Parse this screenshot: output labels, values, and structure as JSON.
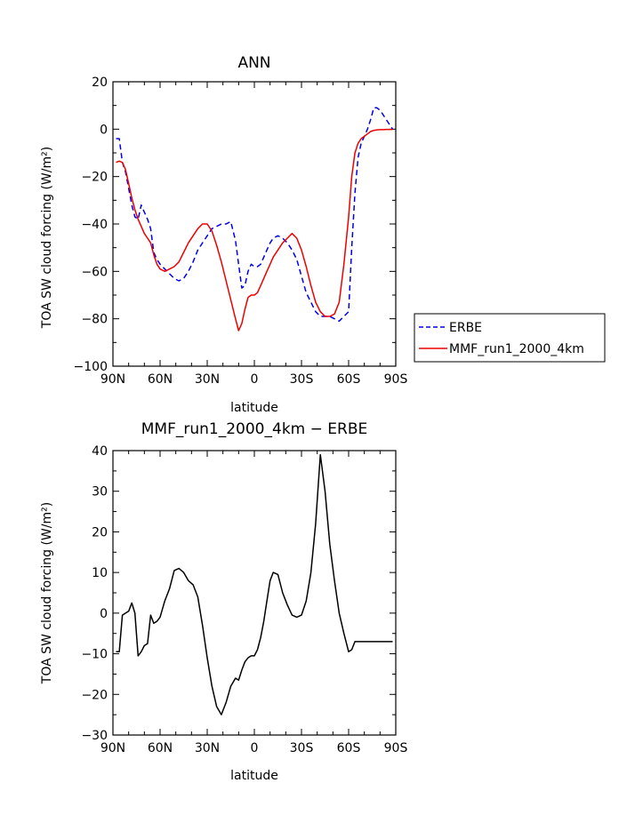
{
  "chart_data": [
    {
      "type": "line",
      "title": "ANN",
      "xlabel": "latitude",
      "ylabel": "TOA SW cloud forcing (W/m²)",
      "xlim": [
        90,
        -90
      ],
      "ylim": [
        -100,
        20
      ],
      "x_ticks": [
        {
          "value": 90,
          "label": "90N"
        },
        {
          "value": 60,
          "label": "60N"
        },
        {
          "value": 30,
          "label": "30N"
        },
        {
          "value": 0,
          "label": "0"
        },
        {
          "value": -30,
          "label": "30S"
        },
        {
          "value": -60,
          "label": "60S"
        },
        {
          "value": -90,
          "label": "90S"
        }
      ],
      "y_ticks": [
        {
          "value": 20,
          "label": "20"
        },
        {
          "value": 0,
          "label": "0"
        },
        {
          "value": -20,
          "label": "−20"
        },
        {
          "value": -40,
          "label": "−40"
        },
        {
          "value": -60,
          "label": "−60"
        },
        {
          "value": -80,
          "label": "−80"
        },
        {
          "value": -100,
          "label": "−100"
        }
      ],
      "legend_position": "right-outside",
      "series": [
        {
          "name": "ERBE",
          "color": "#0000ee",
          "dash": "dashed",
          "x": [
            88,
            86,
            84,
            82,
            80,
            78,
            76,
            74,
            72,
            70,
            68,
            66,
            64,
            62,
            60,
            57,
            54,
            51,
            48,
            45,
            42,
            39,
            36,
            33,
            30,
            27,
            24,
            21,
            18,
            15,
            12,
            10,
            8,
            6,
            4,
            2,
            0,
            -2,
            -4,
            -6,
            -8,
            -10,
            -12,
            -15,
            -18,
            -21,
            -24,
            -27,
            -30,
            -33,
            -36,
            -39,
            -42,
            -45,
            -48,
            -51,
            -54,
            -57,
            -60,
            -62,
            -64,
            -66,
            -68,
            -70,
            -72,
            -74,
            -76,
            -78,
            -80,
            -82,
            -84,
            -86,
            -88
          ],
          "values": [
            -4,
            -4,
            -14,
            -18,
            -25,
            -32,
            -37,
            -38,
            -32,
            -35,
            -38,
            -42,
            -52,
            -55,
            -57,
            -59,
            -61,
            -63,
            -64,
            -63,
            -60,
            -56,
            -51,
            -48,
            -45,
            -42,
            -41,
            -40,
            -40,
            -39,
            -47,
            -57,
            -67,
            -66,
            -60,
            -57,
            -58,
            -58,
            -57,
            -54,
            -51,
            -48,
            -46,
            -45,
            -46,
            -48,
            -51,
            -55,
            -62,
            -69,
            -73,
            -77,
            -79,
            -79,
            -79,
            -80,
            -81,
            -79,
            -77,
            -50,
            -27,
            -12,
            -6,
            -3,
            0,
            4,
            9,
            9,
            8,
            6,
            4,
            2,
            0
          ]
        },
        {
          "name": "MMF_run1_2000_4km",
          "color": "#ee0000",
          "dash": "solid",
          "x": [
            88,
            86,
            84,
            82,
            80,
            78,
            76,
            74,
            72,
            70,
            68,
            66,
            64,
            62,
            60,
            57,
            54,
            51,
            48,
            45,
            42,
            39,
            36,
            33,
            30,
            27,
            24,
            21,
            18,
            15,
            12,
            10,
            8,
            6,
            4,
            2,
            0,
            -2,
            -4,
            -6,
            -8,
            -10,
            -12,
            -15,
            -18,
            -21,
            -24,
            -27,
            -30,
            -33,
            -36,
            -39,
            -42,
            -45,
            -48,
            -51,
            -54,
            -57,
            -60,
            -62,
            -64,
            -66,
            -68,
            -70,
            -72,
            -74,
            -76,
            -78,
            -80,
            -82,
            -84,
            -86,
            -88
          ],
          "values": [
            -14,
            -13.5,
            -14,
            -17,
            -23,
            -29,
            -34,
            -38,
            -41,
            -44,
            -46,
            -48,
            -53,
            -57,
            -59,
            -60,
            -59,
            -58,
            -56,
            -52,
            -48,
            -45,
            -42,
            -40,
            -40,
            -43,
            -49,
            -56,
            -64,
            -72,
            -80,
            -85,
            -82,
            -76,
            -71,
            -70,
            -70,
            -69,
            -66,
            -63,
            -60,
            -57,
            -54,
            -51,
            -48,
            -46,
            -44,
            -46,
            -51,
            -58,
            -66,
            -73,
            -77,
            -79,
            -79,
            -78,
            -73,
            -57,
            -37,
            -20,
            -10,
            -6,
            -4,
            -3,
            -2,
            -1,
            -0.5,
            -0.3,
            -0.2,
            -0.2,
            -0.1,
            -0.1,
            -0.1
          ]
        }
      ]
    },
    {
      "type": "line",
      "title": "MMF_run1_2000_4km − ERBE",
      "xlabel": "latitude",
      "ylabel": "TOA SW cloud forcing (W/m²)",
      "xlim": [
        90,
        -90
      ],
      "ylim": [
        -30,
        40
      ],
      "x_ticks": [
        {
          "value": 90,
          "label": "90N"
        },
        {
          "value": 60,
          "label": "60N"
        },
        {
          "value": 30,
          "label": "30N"
        },
        {
          "value": 0,
          "label": "0"
        },
        {
          "value": -30,
          "label": "30S"
        },
        {
          "value": -60,
          "label": "60S"
        },
        {
          "value": -90,
          "label": "90S"
        }
      ],
      "y_ticks": [
        {
          "value": 40,
          "label": "40"
        },
        {
          "value": 30,
          "label": "30"
        },
        {
          "value": 20,
          "label": "20"
        },
        {
          "value": 10,
          "label": "10"
        },
        {
          "value": 0,
          "label": "0"
        },
        {
          "value": -10,
          "label": "−10"
        },
        {
          "value": -20,
          "label": "−20"
        },
        {
          "value": -30,
          "label": "−30"
        }
      ],
      "series": [
        {
          "name": "MMF_run1_2000_4km − ERBE",
          "color": "#000000",
          "dash": "solid",
          "x": [
            88,
            86,
            84,
            82,
            80,
            78,
            76,
            74,
            72,
            70,
            68,
            66,
            64,
            62,
            60,
            57,
            54,
            51,
            48,
            45,
            42,
            39,
            36,
            33,
            30,
            27,
            24,
            21,
            18,
            15,
            12,
            10,
            8,
            6,
            4,
            2,
            0,
            -2,
            -4,
            -6,
            -8,
            -10,
            -12,
            -15,
            -18,
            -21,
            -24,
            -27,
            -30,
            -33,
            -36,
            -39,
            -42,
            -45,
            -48,
            -51,
            -54,
            -57,
            -60,
            -62,
            -64,
            -66,
            -68,
            -70,
            -72,
            -74,
            -76,
            -78,
            -80,
            -82,
            -84,
            -86,
            -88
          ],
          "values": [
            -9.5,
            -9.5,
            -0.5,
            0,
            0.5,
            2.5,
            0,
            -10.5,
            -9.5,
            -8,
            -7.5,
            -0.5,
            -2.5,
            -2,
            -1,
            3,
            6,
            10.5,
            11,
            10,
            8,
            7,
            4,
            -3,
            -11,
            -18,
            -23,
            -25,
            -22,
            -18,
            -16,
            -16.5,
            -14,
            -12,
            -11,
            -10.5,
            -10.5,
            -9,
            -6,
            -2,
            3,
            8,
            10,
            9.5,
            5,
            2,
            -0.5,
            -1,
            -0.5,
            3,
            10,
            22,
            39,
            30,
            17,
            8,
            0,
            -5,
            -9.5,
            -9,
            -7,
            -7,
            -7,
            -7,
            -7,
            -7,
            -7,
            -7,
            -7,
            -7,
            -7,
            -7,
            -7
          ]
        }
      ]
    }
  ]
}
